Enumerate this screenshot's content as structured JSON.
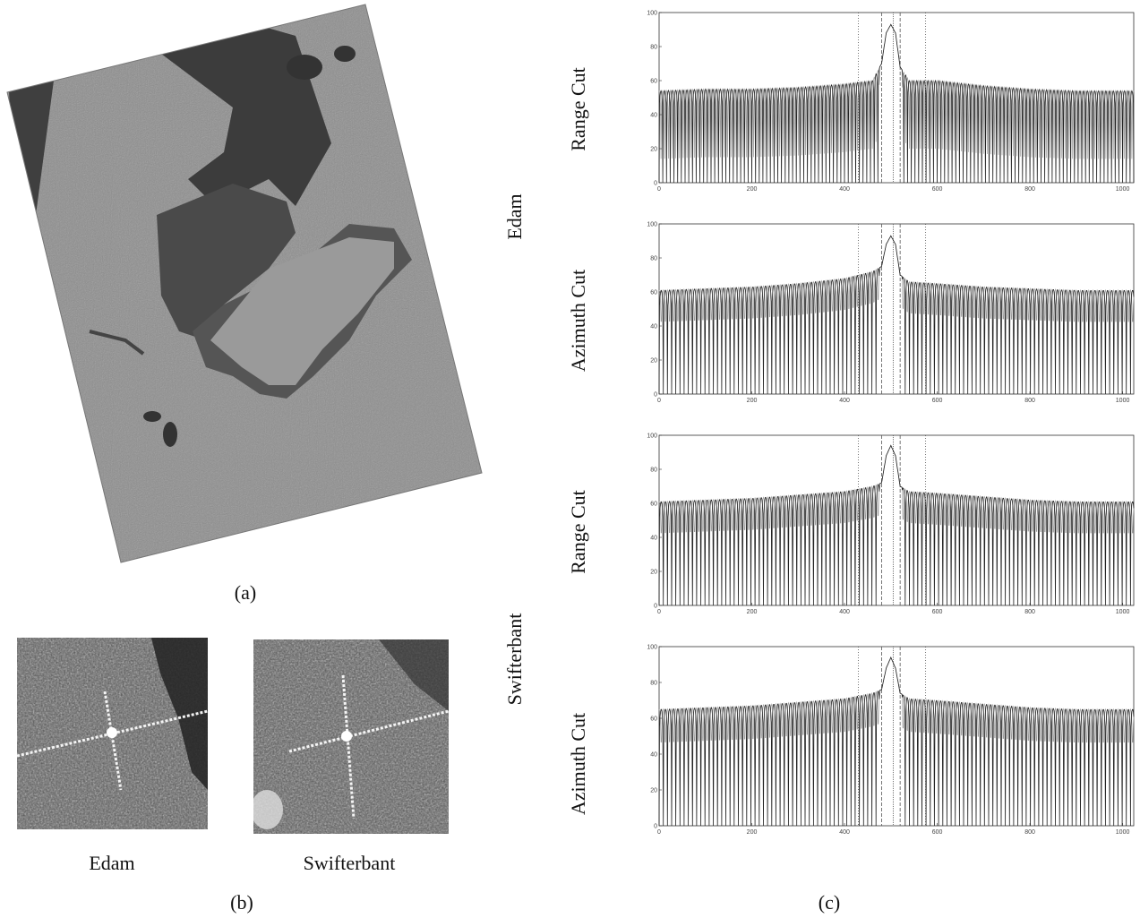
{
  "panel_a": {
    "caption": "(a)"
  },
  "panel_b": {
    "caption": "(b)",
    "images": [
      {
        "label": "Edam"
      },
      {
        "label": "Swifterbant"
      }
    ]
  },
  "panel_c": {
    "caption": "(c)",
    "groups": [
      {
        "label": "Edam"
      },
      {
        "label": "Swifterbant"
      }
    ],
    "cut_labels": [
      "Range Cut",
      "Azimuth Cut",
      "Range Cut",
      "Azimuth Cut"
    ]
  },
  "chart_data": [
    {
      "type": "line",
      "site": "Edam",
      "cut": "Range Cut",
      "xlim": [
        0,
        1024
      ],
      "ylim": [
        0,
        100
      ],
      "xticks": [
        "0",
        "200",
        "400",
        "600",
        "800",
        "1000"
      ],
      "yticks": [
        "0",
        "20",
        "40",
        "60",
        "80",
        "100"
      ],
      "x": [
        0,
        100,
        200,
        300,
        400,
        460,
        480,
        490,
        500,
        510,
        520,
        540,
        600,
        700,
        800,
        900,
        1024
      ],
      "y": [
        54,
        55,
        55,
        56,
        58,
        60,
        70,
        88,
        93,
        88,
        68,
        60,
        60,
        57,
        55,
        54,
        54
      ],
      "sidelobe_period": 8,
      "sidelobe_depth": 40,
      "peak": 93,
      "peak_x": 500
    },
    {
      "type": "line",
      "site": "Edam",
      "cut": "Azimuth Cut",
      "xlim": [
        0,
        1024
      ],
      "ylim": [
        0,
        100
      ],
      "xticks": [
        "0",
        "200",
        "400",
        "600",
        "800",
        "1000"
      ],
      "yticks": [
        "0",
        "20",
        "40",
        "60",
        "80",
        "100"
      ],
      "x": [
        0,
        100,
        200,
        300,
        400,
        460,
        480,
        490,
        500,
        510,
        520,
        540,
        600,
        700,
        800,
        900,
        1024
      ],
      "y": [
        61,
        62,
        63,
        65,
        68,
        72,
        75,
        88,
        93,
        88,
        70,
        66,
        65,
        63,
        62,
        61,
        61
      ],
      "sidelobe_period": 9,
      "sidelobe_depth": 45,
      "peak": 93,
      "peak_x": 500
    },
    {
      "type": "line",
      "site": "Swifterbant",
      "cut": "Range Cut",
      "xlim": [
        0,
        1024
      ],
      "ylim": [
        0,
        100
      ],
      "xticks": [
        "0",
        "200",
        "400",
        "600",
        "800",
        "1000"
      ],
      "yticks": [
        "0",
        "20",
        "40",
        "60",
        "80",
        "100"
      ],
      "x": [
        0,
        100,
        200,
        300,
        400,
        460,
        480,
        490,
        500,
        510,
        520,
        540,
        600,
        700,
        800,
        900,
        1024
      ],
      "y": [
        61,
        62,
        63,
        65,
        67,
        70,
        72,
        88,
        94,
        88,
        70,
        67,
        66,
        64,
        62,
        61,
        61
      ],
      "sidelobe_period": 9,
      "sidelobe_depth": 45,
      "peak": 94,
      "peak_x": 500
    },
    {
      "type": "line",
      "site": "Swifterbant",
      "cut": "Azimuth Cut",
      "xlim": [
        0,
        1024
      ],
      "ylim": [
        0,
        100
      ],
      "xticks": [
        "0",
        "200",
        "400",
        "600",
        "800",
        "1000"
      ],
      "yticks": [
        "0",
        "20",
        "40",
        "60",
        "80",
        "100"
      ],
      "x": [
        0,
        100,
        200,
        300,
        400,
        460,
        480,
        490,
        500,
        510,
        520,
        540,
        600,
        700,
        800,
        900,
        1024
      ],
      "y": [
        65,
        66,
        67,
        69,
        71,
        74,
        76,
        88,
        94,
        88,
        74,
        71,
        70,
        68,
        66,
        65,
        65
      ],
      "sidelobe_period": 9,
      "sidelobe_depth": 45,
      "peak": 94,
      "peak_x": 500
    }
  ]
}
